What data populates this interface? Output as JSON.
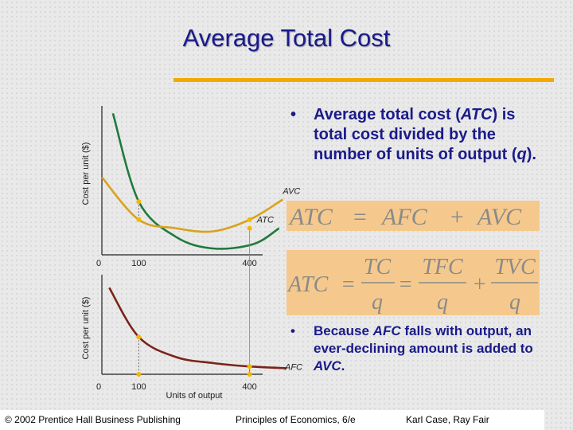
{
  "title": "Average Total Cost",
  "bullet1": {
    "prefix": "Average total cost (",
    "abbr1": "ATC",
    "mid": ") is total cost divided by the number of units of output (",
    "abbr2": "q",
    "suffix": ")."
  },
  "bullet2": {
    "prefix": "Because ",
    "abbr1": "AFC",
    "mid": " falls with output, an ever-declining amount is added to ",
    "abbr2": "AVC",
    "suffix": "."
  },
  "equation1": {
    "lhs": "ATC",
    "eq": "=",
    "t1": "AFC",
    "plus": "+",
    "t2": "AVC"
  },
  "equation2": {
    "lhs": "ATC",
    "eq1": "=",
    "f1_num": "TC",
    "f1_den": "q",
    "eq2": "=",
    "f2_num": "TFC",
    "f2_den": "q",
    "plus": "+",
    "f3_num": "TVC",
    "f3_den": "q"
  },
  "chart_data": [
    {
      "type": "line",
      "ylabel": "Cost per unit ($)",
      "xlabel": "",
      "x_ticks": [
        "0",
        "100",
        "400"
      ],
      "series": [
        {
          "name": "ATC",
          "color": "#1f7a3c",
          "points": [
            [
              30,
              133
            ],
            [
              100,
              50
            ],
            [
              200,
              17
            ],
            [
              300,
              6
            ],
            [
              410,
              10
            ],
            [
              480,
              25
            ]
          ]
        },
        {
          "name": "AVC",
          "color": "#d9a21b",
          "points": [
            [
              0,
              73
            ],
            [
              100,
              33
            ],
            [
              200,
              25
            ],
            [
              300,
              22
            ],
            [
              400,
              33
            ],
            [
              490,
              52
            ]
          ]
        }
      ],
      "markers": [
        [
          100,
          50
        ],
        [
          100,
          33
        ],
        [
          400,
          33
        ],
        [
          400,
          25
        ]
      ],
      "xlim": [
        0,
        500
      ],
      "ylim": [
        0,
        140
      ]
    },
    {
      "type": "line",
      "ylabel": "Cost per unit ($)",
      "xlabel": "Units of output",
      "x_ticks": [
        "0",
        "100",
        "400"
      ],
      "series": [
        {
          "name": "AFC",
          "color": "#7a2418",
          "points": [
            [
              20,
              100
            ],
            [
              100,
              43
            ],
            [
              200,
              20
            ],
            [
              300,
              13
            ],
            [
              400,
              9
            ],
            [
              500,
              7
            ]
          ]
        }
      ],
      "markers": [
        [
          100,
          43
        ],
        [
          100,
          0
        ],
        [
          400,
          0
        ],
        [
          400,
          9
        ]
      ],
      "xlim": [
        0,
        500
      ],
      "ylim": [
        0,
        115
      ]
    }
  ],
  "colors": {
    "title": "#1a1a8a",
    "rule": "#f2a900",
    "equation_box": "#f5c98d"
  },
  "footer": {
    "left": "© 2002 Prentice Hall Business Publishing",
    "center": "Principles of Economics, 6/e",
    "right": "Karl Case, Ray Fair"
  }
}
